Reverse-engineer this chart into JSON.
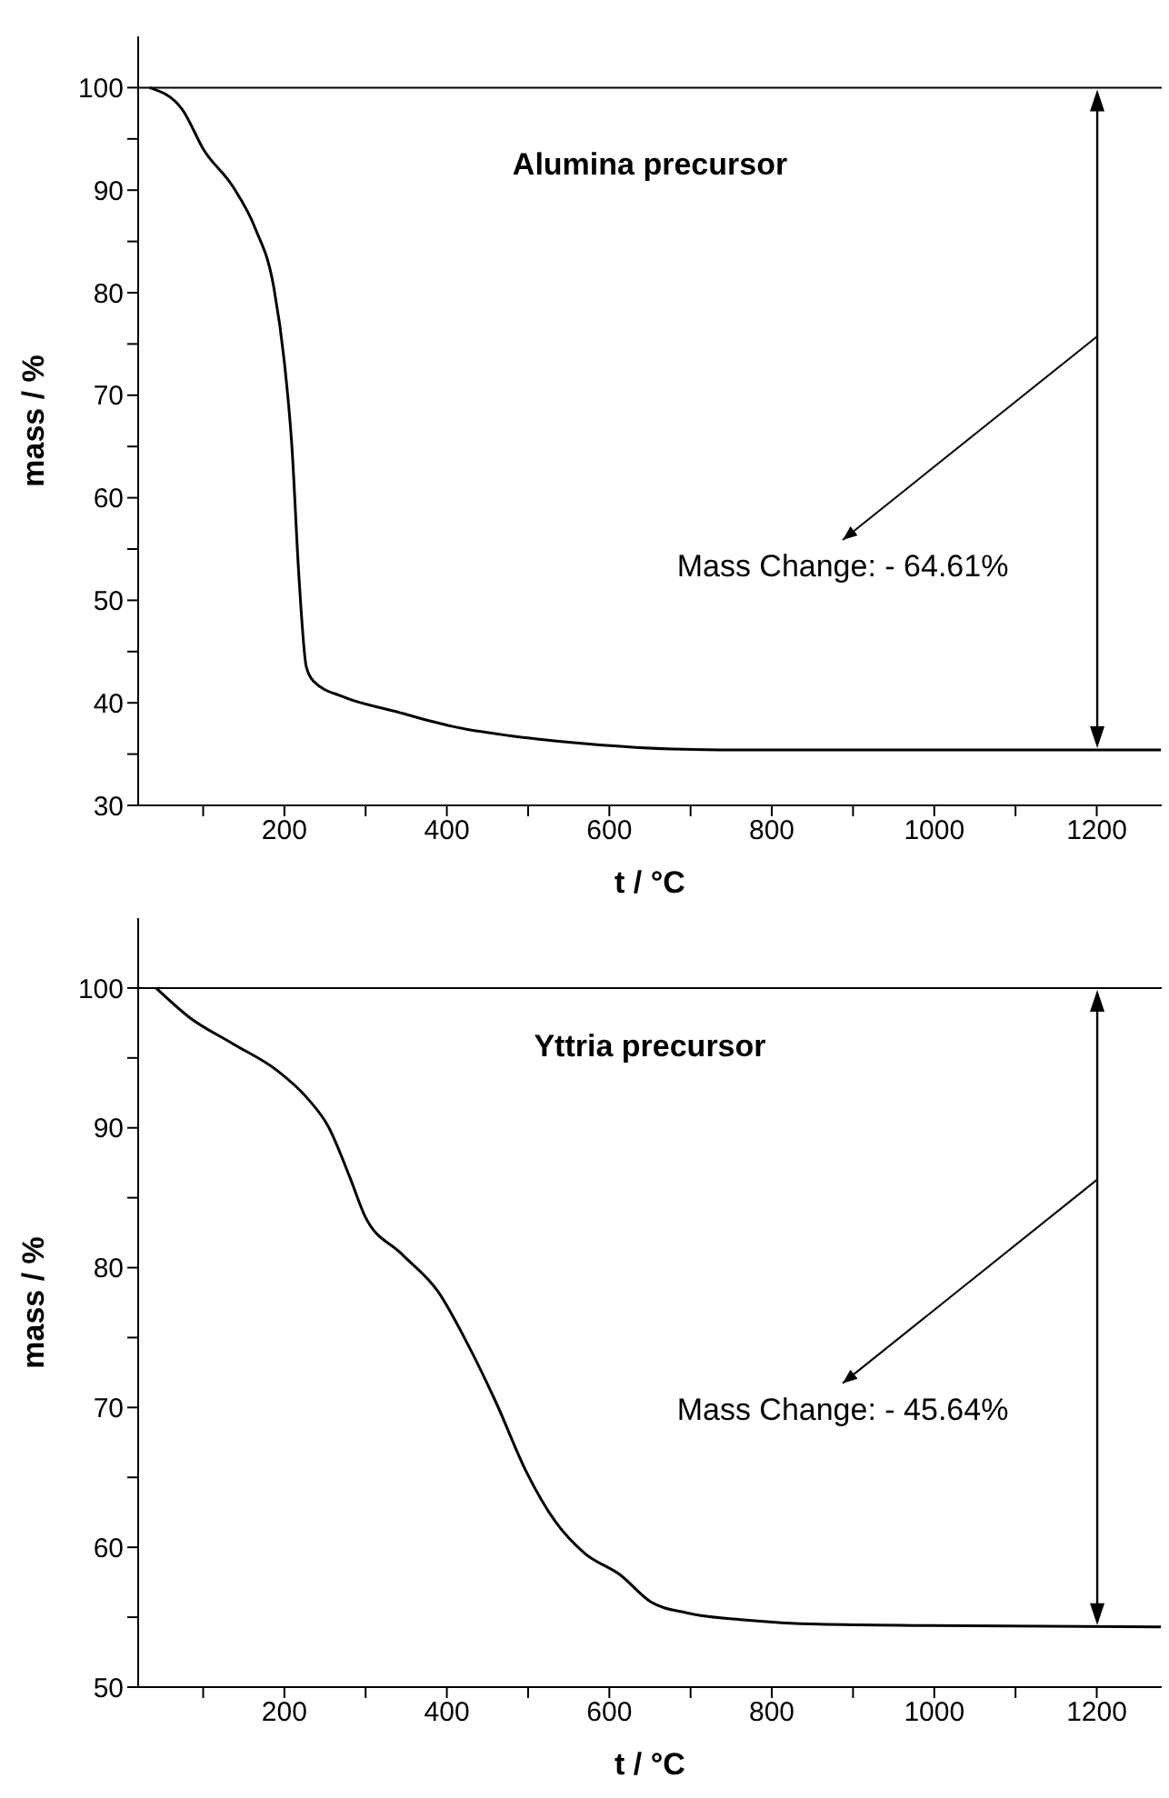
{
  "chart_data": [
    {
      "type": "line",
      "title": "Alumina precursor",
      "xlabel": "t / °C",
      "ylabel": "mass / %",
      "x": [
        34,
        74,
        101,
        137,
        164,
        187,
        200,
        209,
        218,
        227,
        236,
        272,
        335,
        407,
        497,
        588,
        678,
        768,
        948,
        1279
      ],
      "series": [
        {
          "color": "#000000",
          "values": [
            100,
            97.9,
            93.9,
            90.3,
            86.3,
            80.5,
            73.2,
            65.3,
            52.2,
            43.5,
            42.1,
            40.6,
            39.2,
            37.7,
            36.6,
            35.9,
            35.5,
            35.4,
            35.4,
            35.4
          ]
        }
      ],
      "xlim": [
        20,
        1280
      ],
      "ylim": [
        30,
        105
      ],
      "xticks": [
        {
          "value": 100,
          "label": null
        },
        200,
        {
          "value": 300,
          "label": null
        },
        400,
        {
          "value": 500,
          "label": null
        },
        600,
        {
          "value": 700,
          "label": null
        },
        800,
        {
          "value": 900,
          "label": null
        },
        1000,
        {
          "value": 1100,
          "label": null
        },
        1200
      ],
      "yticks": [
        30,
        {
          "value": 35,
          "label": null
        },
        40,
        {
          "value": 45,
          "label": null
        },
        50,
        {
          "value": 55,
          "label": null
        },
        60,
        {
          "value": 65,
          "label": null
        },
        70,
        {
          "value": 75,
          "label": null
        },
        80,
        {
          "value": 85,
          "label": null
        },
        90,
        {
          "value": 95,
          "label": null
        },
        100
      ],
      "ref_lines": [
        {
          "axis": "y",
          "value": 100
        }
      ],
      "annotations": [
        "Mass Change: - 64.61%"
      ],
      "grid": false,
      "legend": false,
      "marker": "none",
      "line_style": "solid"
    },
    {
      "type": "line",
      "title": "Yttria precursor",
      "xlabel": "t / °C",
      "ylabel": "mass / %",
      "x": [
        42,
        83,
        137,
        191,
        227,
        254,
        281,
        299,
        344,
        389,
        425,
        461,
        497,
        534,
        569,
        614,
        651,
        696,
        768,
        858,
        993,
        1279
      ],
      "series": [
        {
          "color": "#000000",
          "values": [
            100,
            97.9,
            96.0,
            94.1,
            92.2,
            90.1,
            86.4,
            83.7,
            81.0,
            78.3,
            74.6,
            70.3,
            65.5,
            61.8,
            59.6,
            58.0,
            56.1,
            55.3,
            54.8,
            54.5,
            54.4,
            54.3
          ]
        }
      ],
      "xlim": [
        20,
        1280
      ],
      "ylim": [
        50,
        105
      ],
      "xticks": [
        {
          "value": 100,
          "label": null
        },
        200,
        {
          "value": 300,
          "label": null
        },
        400,
        {
          "value": 500,
          "label": null
        },
        600,
        {
          "value": 700,
          "label": null
        },
        800,
        {
          "value": 900,
          "label": null
        },
        1000,
        {
          "value": 1100,
          "label": null
        },
        1200
      ],
      "yticks": [
        50,
        {
          "value": 55,
          "label": null
        },
        60,
        {
          "value": 65,
          "label": null
        },
        70,
        {
          "value": 75,
          "label": null
        },
        80,
        {
          "value": 85,
          "label": null
        },
        90,
        {
          "value": 95,
          "label": null
        },
        100
      ],
      "ref_lines": [
        {
          "axis": "y",
          "value": 100
        }
      ],
      "annotations": [
        "Mass Change: - 45.64%"
      ],
      "grid": false,
      "legend": false,
      "marker": "none",
      "line_style": "solid"
    }
  ]
}
